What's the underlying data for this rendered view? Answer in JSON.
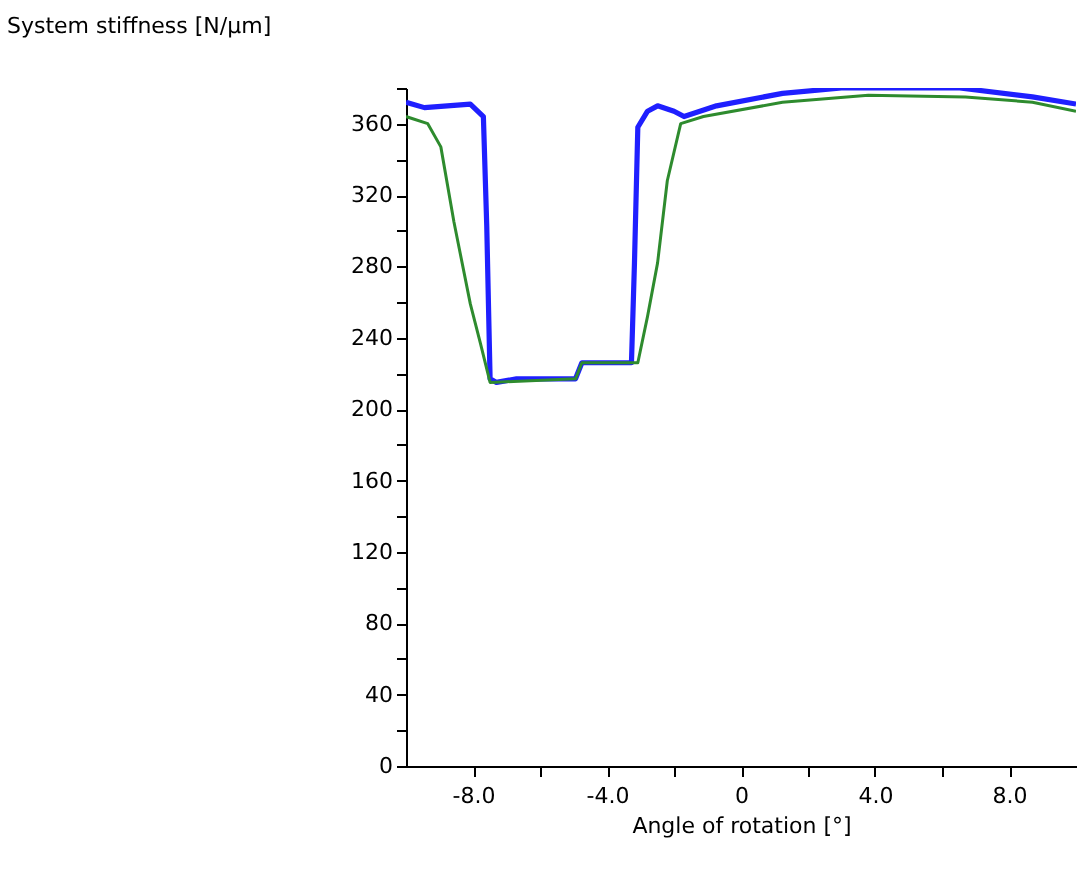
{
  "chart_data": {
    "type": "line",
    "xlabel": "Angle of rotation [°]",
    "ylabel": "System stiffness [N/µm]",
    "xlim": [
      -10,
      10
    ],
    "ylim": [
      0,
      380
    ],
    "xticks": [
      {
        "value": -8,
        "label": "-8.0"
      },
      {
        "value": -6,
        "label": null
      },
      {
        "value": -4,
        "label": "-4.0"
      },
      {
        "value": -2,
        "label": null
      },
      0,
      {
        "value": 2,
        "label": null
      },
      {
        "value": 4,
        "label": "4.0"
      },
      {
        "value": 6,
        "label": null
      },
      {
        "value": 8,
        "label": "8.0"
      }
    ],
    "yticks": [
      0,
      {
        "value": 20,
        "label": null
      },
      40,
      {
        "value": 60,
        "label": null
      },
      80,
      {
        "value": 100,
        "label": null
      },
      120,
      {
        "value": 140,
        "label": null
      },
      160,
      {
        "value": 180,
        "label": null
      },
      200,
      {
        "value": 220,
        "label": null
      },
      240,
      {
        "value": 260,
        "label": null
      },
      280,
      {
        "value": 300,
        "label": null
      },
      320,
      {
        "value": 340,
        "label": null
      },
      360,
      {
        "value": 380,
        "label": null
      }
    ],
    "grid": false,
    "legend": false,
    "line_style": "solid",
    "marker": "none",
    "series": [
      {
        "color": "#1f1fff",
        "x": [
          -10,
          -9.45,
          -8.08,
          -7.69,
          -7.59,
          -7.49,
          -7.3,
          -6.7,
          -4.94,
          -4.75,
          -3.27,
          -3.18,
          -3.08,
          -2.79,
          -2.49,
          -2.0,
          -1.7,
          -0.73,
          1.24,
          3.0,
          6.53,
          8.7,
          10
        ],
        "values": [
          372,
          369,
          371,
          364,
          303,
          217,
          215,
          217,
          217,
          226,
          226,
          282,
          358,
          367,
          370,
          367,
          364,
          370,
          377,
          380,
          380,
          375,
          371
        ]
      },
      {
        "color": "#2e8b2e",
        "x": [
          -10,
          -9.35,
          -8.96,
          -8.57,
          -8.08,
          -7.78,
          -7.49,
          -4.94,
          -4.75,
          -3.08,
          -2.79,
          -2.49,
          -2.2,
          -1.8,
          -1.12,
          1.24,
          3.8,
          6.7,
          8.7,
          10
        ],
        "values": [
          364,
          360,
          347,
          305,
          259,
          237,
          215,
          217,
          226,
          226,
          252,
          282,
          328,
          360,
          364,
          372,
          376,
          375,
          372,
          367
        ]
      }
    ]
  }
}
